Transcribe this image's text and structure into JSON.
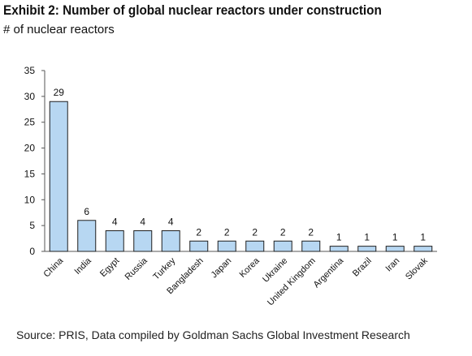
{
  "title": "Exhibit 2: Number of global nuclear reactors under construction",
  "subtitle": "# of nuclear reactors",
  "source": "Source: PRIS, Data compiled by Goldman Sachs Global Investment Research",
  "colors": {
    "bar_fill": "#b7d7f2",
    "bar_stroke": "#1f1f1f",
    "axis": "#555555"
  },
  "chart_data": {
    "type": "bar",
    "categories": [
      "China",
      "India",
      "Egypt",
      "Russia",
      "Turkey",
      "Bangladesh",
      "Japan",
      "Korea",
      "Ukraine",
      "United Kingdom",
      "Argentina",
      "Brazil",
      "Iran",
      "Slovak"
    ],
    "values": [
      29,
      6,
      4,
      4,
      4,
      2,
      2,
      2,
      2,
      2,
      1,
      1,
      1,
      1
    ],
    "ylim": [
      0,
      35
    ],
    "yticks": [
      0,
      5,
      10,
      15,
      20,
      25,
      30,
      35
    ],
    "xlabel": "",
    "ylabel": "",
    "grid": false,
    "legend": "none",
    "data_labels": true
  }
}
